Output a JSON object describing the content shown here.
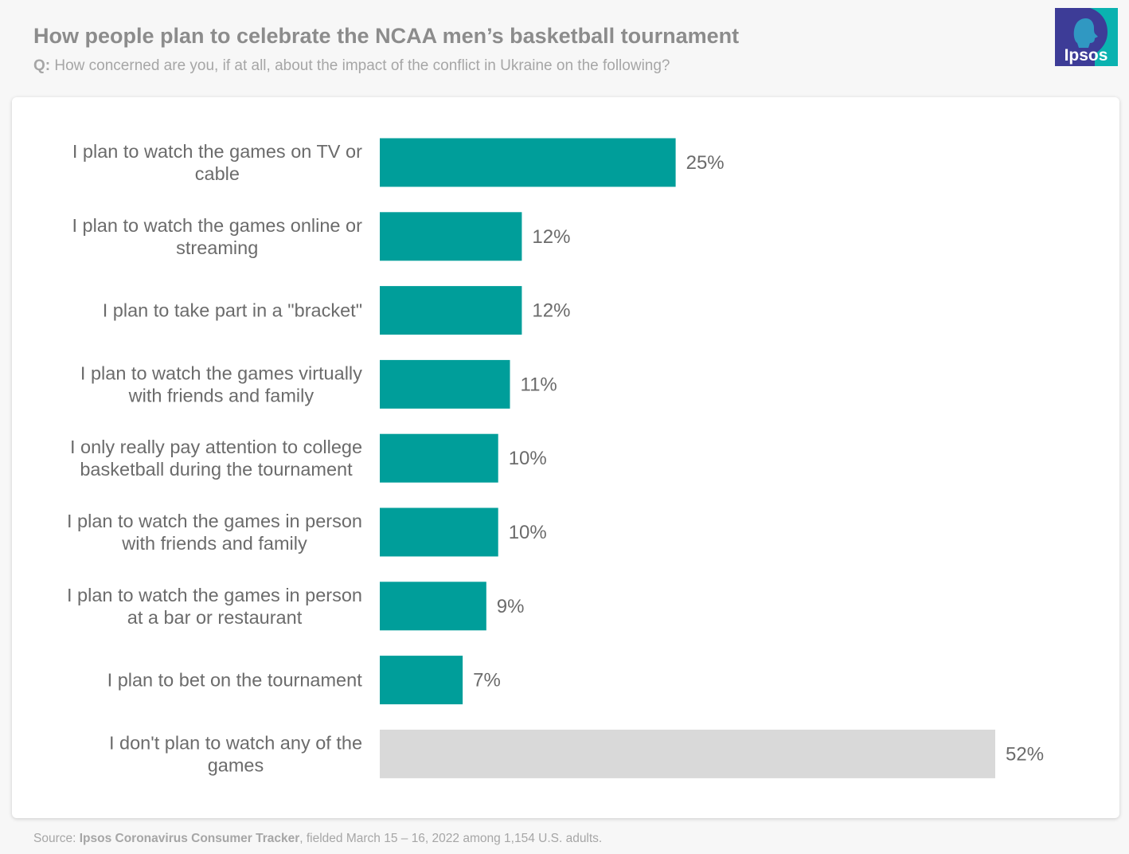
{
  "header": {
    "title": "How people plan to celebrate the NCAA men’s basketball tournament",
    "subtitle_prefix": "Q:",
    "subtitle_text": " How concerned are you, if at all, about the impact of the conflict in Ukraine on the following?"
  },
  "logo": {
    "text": "Ipsos",
    "icon": "ipsos-logo"
  },
  "footer": {
    "prefix": "Source: ",
    "source": "Ipsos Coronavirus Consumer Tracker",
    "suffix": ", fielded March 15 – 16, 2022 among 1,154 U.S. adults."
  },
  "colors": {
    "primary_bar": "#009e9a",
    "secondary_bar": "#d9d9d9",
    "label_text": "#6b6b6b",
    "logo_bg": "#3d3c97",
    "logo_teal": "#0ab2b0"
  },
  "chart_data": {
    "type": "bar",
    "orientation": "horizontal",
    "categories": [
      [
        "I plan to watch the games on TV or",
        "cable"
      ],
      [
        "I plan to watch the games online or",
        "streaming"
      ],
      [
        "I plan to take part in a \"bracket\""
      ],
      [
        "I plan to watch the games virtually",
        "with friends and family"
      ],
      [
        "I only really pay attention to college",
        "basketball during the tournament"
      ],
      [
        "I plan to watch the games in person",
        "with friends and family"
      ],
      [
        "I plan to watch the games in person",
        "at a bar or restaurant"
      ],
      [
        "I plan to bet on the tournament"
      ],
      [
        "I don't plan to watch any of the",
        "games"
      ]
    ],
    "values": [
      25,
      12,
      12,
      11,
      10,
      10,
      9,
      7,
      52
    ],
    "value_labels": [
      "25%",
      "12%",
      "12%",
      "11%",
      "10%",
      "10%",
      "9%",
      "7%",
      "52%"
    ],
    "highlight": [
      true,
      true,
      true,
      true,
      true,
      true,
      true,
      true,
      false
    ],
    "xlim": [
      0,
      52
    ],
    "grid": false,
    "legend": "none"
  }
}
